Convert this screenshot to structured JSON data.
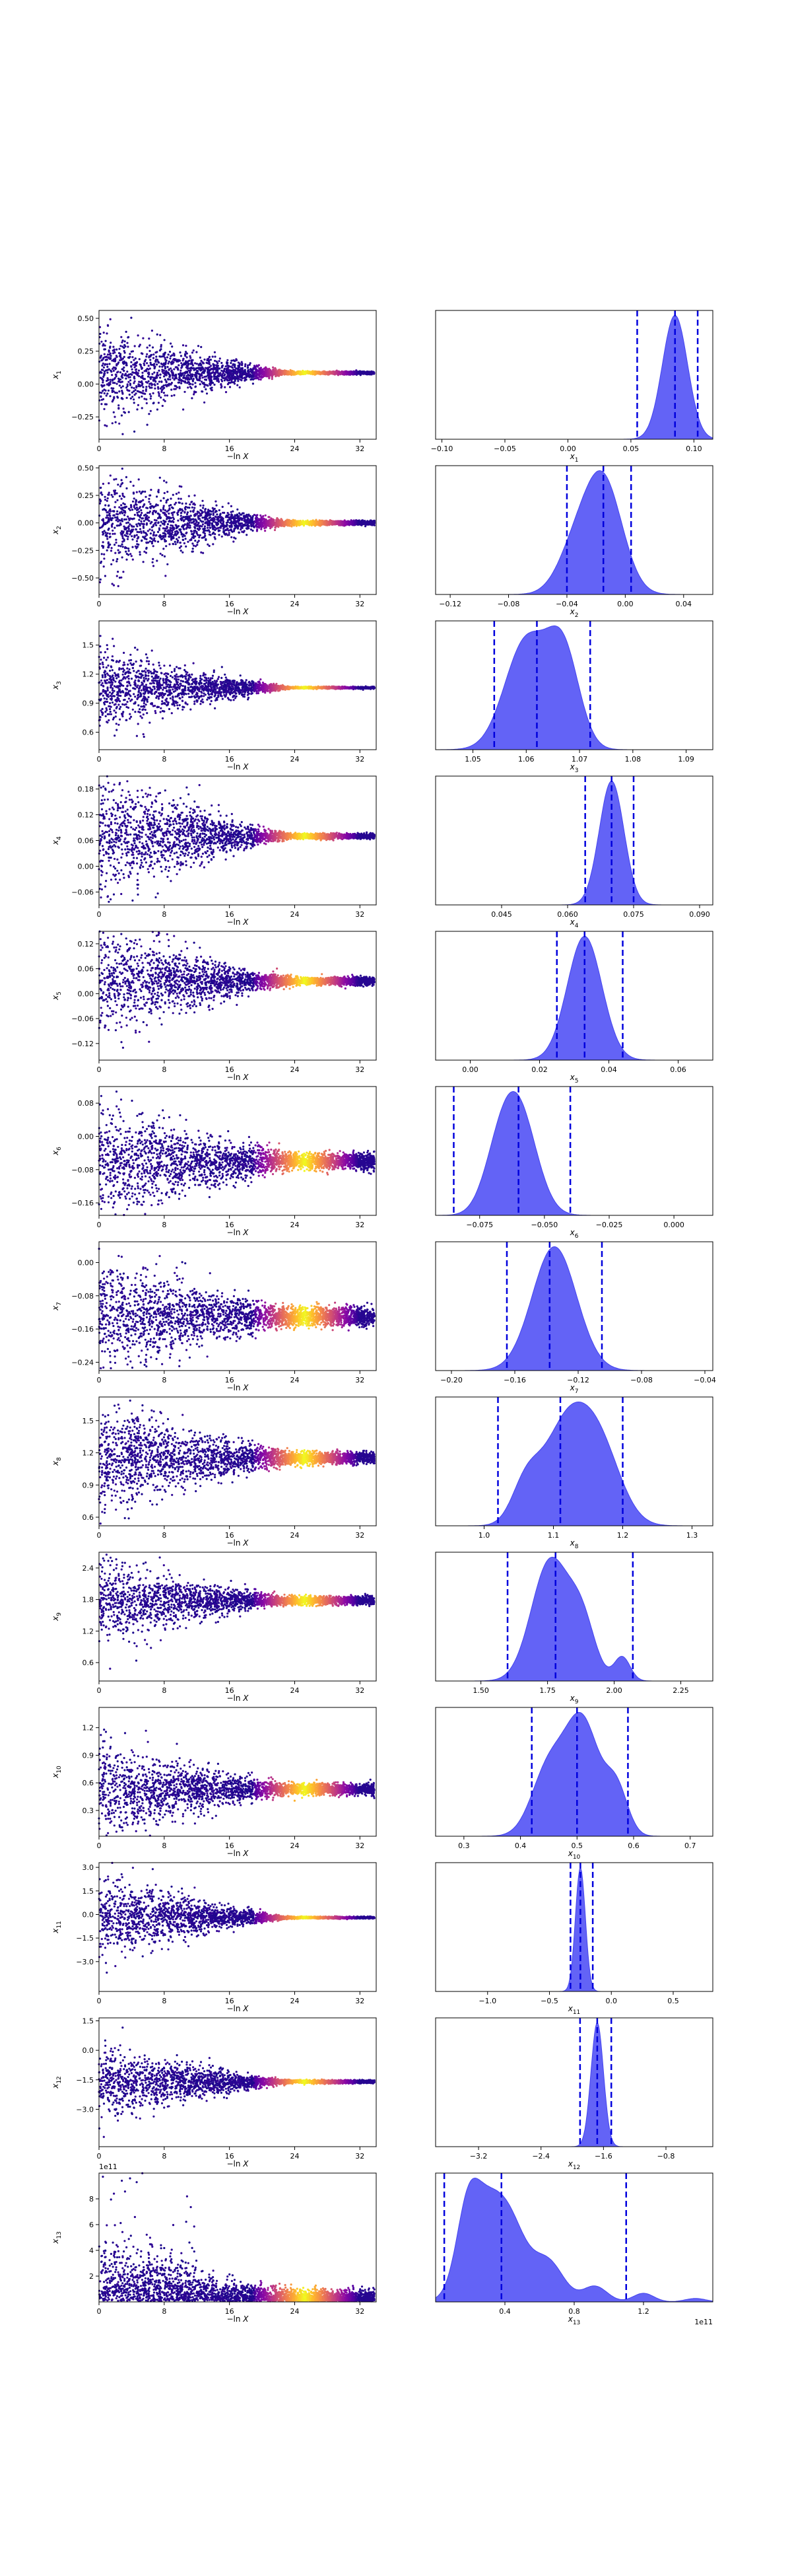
{
  "chart_data": [
    {
      "type": "scatter",
      "row": 1,
      "xlabel": "−ln X",
      "ylabel": "x_1",
      "xlim": [
        0,
        34
      ],
      "ylim": [
        -0.42,
        0.56
      ],
      "xticks": [
        0,
        8,
        16,
        24,
        32
      ],
      "yticks": [
        -0.25,
        0.0,
        0.25,
        0.5
      ],
      "yticklabels": [
        "−0.25",
        "0.00",
        "0.25",
        "0.50"
      ],
      "center": 0.085,
      "spread0": 0.17,
      "spread_end": 0.006,
      "colormap": "plasma"
    },
    {
      "type": "area",
      "row": 1,
      "xlabel": "x_1",
      "xlim": [
        -0.105,
        0.115
      ],
      "xticks": [
        -0.1,
        -0.05,
        0.0,
        0.05,
        0.1
      ],
      "xticklabels": [
        "−0.10",
        "−0.05",
        "0.00",
        "0.05",
        "0.10"
      ],
      "peaks": [
        [
          0.085,
          0.01,
          1.0
        ]
      ],
      "quantiles": [
        0.055,
        0.085,
        0.103
      ],
      "fill": "#5b5bf5",
      "line": "#0000dd"
    },
    {
      "type": "scatter",
      "row": 2,
      "xlabel": "−ln X",
      "ylabel": "x_2",
      "xlim": [
        0,
        34
      ],
      "ylim": [
        -0.65,
        0.52
      ],
      "xticks": [
        0,
        8,
        16,
        24,
        32
      ],
      "yticks": [
        -0.5,
        -0.25,
        0.0,
        0.25,
        0.5
      ],
      "yticklabels": [
        "−0.50",
        "−0.25",
        "0.00",
        "0.25",
        "0.50"
      ],
      "center": 0.0,
      "spread0": 0.22,
      "spread_end": 0.01,
      "colormap": "plasma"
    },
    {
      "type": "area",
      "row": 2,
      "xlabel": "x_2",
      "xlim": [
        -0.13,
        0.06
      ],
      "xticks": [
        -0.12,
        -0.08,
        -0.04,
        0.0,
        0.04
      ],
      "xticklabels": [
        "−0.12",
        "−0.08",
        "−0.04",
        "0.00",
        "0.04"
      ],
      "peaks": [
        [
          -0.015,
          0.013,
          1.0
        ],
        [
          -0.035,
          0.012,
          0.35
        ]
      ],
      "quantiles": [
        -0.04,
        -0.015,
        0.004
      ],
      "fill": "#5b5bf5",
      "line": "#0000dd"
    },
    {
      "type": "scatter",
      "row": 3,
      "xlabel": "−ln X",
      "ylabel": "x_3",
      "xlim": [
        0,
        34
      ],
      "ylim": [
        0.42,
        1.75
      ],
      "xticks": [
        0,
        8,
        16,
        24,
        32
      ],
      "yticks": [
        0.6,
        0.9,
        1.2,
        1.5
      ],
      "yticklabels": [
        "0.6",
        "0.9",
        "1.2",
        "1.5"
      ],
      "center": 1.06,
      "spread0": 0.2,
      "spread_end": 0.005,
      "colormap": "plasma"
    },
    {
      "type": "area",
      "row": 3,
      "xlabel": "x_3",
      "xlim": [
        1.043,
        1.095
      ],
      "xticks": [
        1.05,
        1.06,
        1.07,
        1.08,
        1.09
      ],
      "xticklabels": [
        "1.05",
        "1.06",
        "1.07",
        "1.08",
        "1.09"
      ],
      "peaks": [
        [
          1.06,
          0.004,
          1.0
        ],
        [
          1.067,
          0.003,
          0.85
        ]
      ],
      "quantiles": [
        1.054,
        1.062,
        1.072
      ],
      "fill": "#5b5bf5",
      "line": "#0000dd"
    },
    {
      "type": "scatter",
      "row": 4,
      "xlabel": "−ln X",
      "ylabel": "x_4",
      "xlim": [
        0,
        34
      ],
      "ylim": [
        -0.09,
        0.21
      ],
      "xticks": [
        0,
        8,
        16,
        24,
        32
      ],
      "yticks": [
        -0.06,
        0.0,
        0.06,
        0.12,
        0.18
      ],
      "yticklabels": [
        "−0.06",
        "0.00",
        "0.06",
        "0.12",
        "0.18"
      ],
      "center": 0.07,
      "spread0": 0.07,
      "spread_end": 0.003,
      "colormap": "plasma"
    },
    {
      "type": "area",
      "row": 4,
      "xlabel": "x_4",
      "xlim": [
        0.03,
        0.093
      ],
      "xticks": [
        0.045,
        0.06,
        0.075,
        0.09
      ],
      "xticklabels": [
        "0.045",
        "0.060",
        "0.075",
        "0.090"
      ],
      "peaks": [
        [
          0.07,
          0.0028,
          1.0
        ]
      ],
      "quantiles": [
        0.064,
        0.07,
        0.075
      ],
      "fill": "#5b5bf5",
      "line": "#0000dd"
    },
    {
      "type": "scatter",
      "row": 5,
      "xlabel": "−ln X",
      "ylabel": "x_5",
      "xlim": [
        0,
        34
      ],
      "ylim": [
        -0.16,
        0.15
      ],
      "xticks": [
        0,
        8,
        16,
        24,
        32
      ],
      "yticks": [
        -0.12,
        -0.06,
        0.0,
        0.06,
        0.12
      ],
      "yticklabels": [
        "−0.12",
        "−0.06",
        "0.00",
        "0.06",
        "0.12"
      ],
      "center": 0.03,
      "spread0": 0.06,
      "spread_end": 0.005,
      "colormap": "plasma"
    },
    {
      "type": "area",
      "row": 5,
      "xlabel": "x_5",
      "xlim": [
        -0.01,
        0.07
      ],
      "xticks": [
        0.0,
        0.02,
        0.04,
        0.06
      ],
      "xticklabels": [
        "0.00",
        "0.02",
        "0.04",
        "0.06"
      ],
      "peaks": [
        [
          0.033,
          0.005,
          1.0
        ]
      ],
      "quantiles": [
        0.025,
        0.033,
        0.044
      ],
      "fill": "#5b5bf5",
      "line": "#0000dd"
    },
    {
      "type": "scatter",
      "row": 6,
      "xlabel": "−ln X",
      "ylabel": "x_6",
      "xlim": [
        0,
        34
      ],
      "ylim": [
        -0.19,
        0.12
      ],
      "xticks": [
        0,
        8,
        16,
        24,
        32
      ],
      "yticks": [
        -0.16,
        -0.08,
        0.0,
        0.08
      ],
      "yticklabels": [
        "−0.16",
        "−0.08",
        "0.00",
        "0.08"
      ],
      "center": -0.06,
      "spread0": 0.06,
      "spread_end": 0.01,
      "colormap": "plasma"
    },
    {
      "type": "area",
      "row": 6,
      "xlabel": "x_6",
      "xlim": [
        -0.092,
        0.015
      ],
      "xticks": [
        -0.075,
        -0.05,
        -0.025,
        0.0
      ],
      "xticklabels": [
        "−0.075",
        "−0.050",
        "−0.025",
        "0.000"
      ],
      "peaks": [
        [
          -0.06,
          0.007,
          1.0
        ],
        [
          -0.068,
          0.006,
          0.4
        ]
      ],
      "quantiles": [
        -0.085,
        -0.06,
        -0.04
      ],
      "fill": "#5b5bf5",
      "line": "#0000dd"
    },
    {
      "type": "scatter",
      "row": 7,
      "xlabel": "−ln X",
      "ylabel": "x_7",
      "xlim": [
        0,
        34
      ],
      "ylim": [
        -0.26,
        0.05
      ],
      "xticks": [
        0,
        8,
        16,
        24,
        32
      ],
      "yticks": [
        -0.24,
        -0.16,
        -0.08,
        0.0
      ],
      "yticklabels": [
        "−0.24",
        "−0.16",
        "−0.08",
        "0.00"
      ],
      "center": -0.13,
      "spread0": 0.06,
      "spread_end": 0.012,
      "colormap": "plasma"
    },
    {
      "type": "area",
      "row": 7,
      "xlabel": "x_7",
      "xlim": [
        -0.21,
        -0.035
      ],
      "xticks": [
        -0.2,
        -0.16,
        -0.12,
        -0.08,
        -0.04
      ],
      "xticklabels": [
        "−0.20",
        "−0.16",
        "−0.12",
        "−0.08",
        "−0.04"
      ],
      "peaks": [
        [
          -0.135,
          0.014,
          1.0
        ]
      ],
      "quantiles": [
        -0.165,
        -0.138,
        -0.105
      ],
      "fill": "#5b5bf5",
      "line": "#0000dd"
    },
    {
      "type": "scatter",
      "row": 8,
      "xlabel": "−ln X",
      "ylabel": "x_8",
      "xlim": [
        0,
        34
      ],
      "ylim": [
        0.52,
        1.72
      ],
      "xticks": [
        0,
        8,
        16,
        24,
        32
      ],
      "yticks": [
        0.6,
        0.9,
        1.2,
        1.5
      ],
      "yticklabels": [
        "0.6",
        "0.9",
        "1.2",
        "1.5"
      ],
      "center": 1.15,
      "spread0": 0.22,
      "spread_end": 0.03,
      "colormap": "plasma"
    },
    {
      "type": "area",
      "row": 8,
      "xlabel": "x_8",
      "xlim": [
        0.93,
        1.33
      ],
      "xticks": [
        1.0,
        1.1,
        1.2,
        1.3
      ],
      "xticklabels": [
        "1.0",
        "1.1",
        "1.2",
        "1.3"
      ],
      "peaks": [
        [
          1.12,
          0.035,
          1.0
        ],
        [
          1.17,
          0.03,
          0.6
        ],
        [
          1.06,
          0.02,
          0.35
        ]
      ],
      "quantiles": [
        1.02,
        1.11,
        1.2
      ],
      "fill": "#5b5bf5",
      "line": "#0000dd"
    },
    {
      "type": "scatter",
      "row": 9,
      "xlabel": "−ln X",
      "ylabel": "x_9",
      "xlim": [
        0,
        34
      ],
      "ylim": [
        0.25,
        2.7
      ],
      "xticks": [
        0,
        8,
        16,
        24,
        32
      ],
      "yticks": [
        0.6,
        1.2,
        1.8,
        2.4
      ],
      "yticklabels": [
        "0.6",
        "1.2",
        "1.8",
        "2.4"
      ],
      "center": 1.78,
      "spread0": 0.35,
      "spread_end": 0.04,
      "colormap": "plasma"
    },
    {
      "type": "area",
      "row": 9,
      "xlabel": "x_9",
      "xlim": [
        1.33,
        2.37
      ],
      "xticks": [
        1.5,
        1.75,
        2.0,
        2.25
      ],
      "xticklabels": [
        "1.50",
        "1.75",
        "2.00",
        "2.25"
      ],
      "peaks": [
        [
          1.76,
          0.07,
          1.0
        ],
        [
          1.88,
          0.05,
          0.45
        ],
        [
          2.03,
          0.03,
          0.2
        ]
      ],
      "quantiles": [
        1.6,
        1.78,
        2.07
      ],
      "fill": "#5b5bf5",
      "line": "#0000dd"
    },
    {
      "type": "scatter",
      "row": 10,
      "xlabel": "−ln X",
      "ylabel": "x_10",
      "xlim": [
        0,
        34
      ],
      "ylim": [
        0.02,
        1.42
      ],
      "xticks": [
        0,
        8,
        16,
        24,
        32
      ],
      "yticks": [
        0.3,
        0.6,
        0.9,
        1.2
      ],
      "yticklabels": [
        "0.3",
        "0.6",
        "0.9",
        "1.2"
      ],
      "center": 0.53,
      "spread0": 0.22,
      "spread_end": 0.03,
      "colormap": "plasma"
    },
    {
      "type": "area",
      "row": 10,
      "xlabel": "x_10",
      "xlim": [
        0.25,
        0.74
      ],
      "xticks": [
        0.3,
        0.4,
        0.5,
        0.6,
        0.7
      ],
      "xticklabels": [
        "0.3",
        "0.4",
        "0.5",
        "0.6",
        "0.7"
      ],
      "peaks": [
        [
          0.51,
          0.03,
          1.0
        ],
        [
          0.45,
          0.03,
          0.6
        ],
        [
          0.57,
          0.02,
          0.4
        ]
      ],
      "quantiles": [
        0.42,
        0.5,
        0.59
      ],
      "fill": "#5b5bf5",
      "line": "#0000dd"
    },
    {
      "type": "scatter",
      "row": 11,
      "xlabel": "−ln X",
      "ylabel": "x_11",
      "xlim": [
        0,
        34
      ],
      "ylim": [
        -4.9,
        3.3
      ],
      "xticks": [
        0,
        8,
        16,
        24,
        32
      ],
      "yticks": [
        -3.0,
        -1.5,
        0.0,
        1.5,
        3.0
      ],
      "yticklabels": [
        "−3.0",
        "−1.5",
        "0.0",
        "1.5",
        "3.0"
      ],
      "center": -0.2,
      "spread0": 1.3,
      "spread_end": 0.03,
      "colormap": "plasma"
    },
    {
      "type": "area",
      "row": 11,
      "xlabel": "x_11",
      "xlim": [
        -1.42,
        0.82
      ],
      "xticks": [
        -1.0,
        -0.5,
        0.0,
        0.5
      ],
      "xticklabels": [
        "−1.0",
        "−0.5",
        "0.0",
        "0.5"
      ],
      "peaks": [
        [
          -0.25,
          0.04,
          1.0
        ]
      ],
      "quantiles": [
        -0.33,
        -0.25,
        -0.15
      ],
      "fill": "#5b5bf5",
      "line": "#0000dd"
    },
    {
      "type": "scatter",
      "row": 12,
      "xlabel": "−ln X",
      "ylabel": "x_12",
      "xlim": [
        0,
        34
      ],
      "ylim": [
        -4.9,
        1.65
      ],
      "xticks": [
        0,
        8,
        16,
        24,
        32
      ],
      "yticks": [
        -3.0,
        -1.5,
        0.0,
        1.5
      ],
      "yticklabels": [
        "−3.0",
        "−1.5",
        "0.0",
        "1.5"
      ],
      "center": -1.6,
      "spread0": 0.9,
      "spread_end": 0.04,
      "colormap": "plasma"
    },
    {
      "type": "area",
      "row": 12,
      "xlabel": "x_12",
      "xlim": [
        -3.75,
        -0.2
      ],
      "xticks": [
        -3.2,
        -2.4,
        -1.6,
        -0.8
      ],
      "xticklabels": [
        "−3.2",
        "−2.4",
        "−1.6",
        "−0.8"
      ],
      "peaks": [
        [
          -1.68,
          0.08,
          1.0
        ]
      ],
      "quantiles": [
        -1.9,
        -1.68,
        -1.5
      ],
      "fill": "#5b5bf5",
      "line": "#0000dd"
    },
    {
      "type": "scatter",
      "row": 13,
      "xlabel": "−ln X",
      "ylabel": "x_13",
      "exponent": "1e11",
      "xlim": [
        0,
        34
      ],
      "ylim": [
        0,
        10.0
      ],
      "xticks": [
        0,
        8,
        16,
        24,
        32
      ],
      "yticks": [
        2,
        4,
        6,
        8
      ],
      "yticklabels": [
        "2",
        "4",
        "6",
        "8"
      ],
      "center": 0.5,
      "spread0": 1.4,
      "spread_end": 0.4,
      "colormap": "plasma",
      "skew": true
    },
    {
      "type": "area",
      "row": 13,
      "xlabel": "x_13",
      "exponent": "1e11",
      "xlim": [
        0,
        1.6
      ],
      "xticks": [
        0.4,
        0.8,
        1.2
      ],
      "xticklabels": [
        "0.4",
        "0.8",
        "1.2"
      ],
      "peaks": [
        [
          0.25,
          0.1,
          0.95
        ],
        [
          0.42,
          0.1,
          0.9
        ],
        [
          0.18,
          0.06,
          0.5
        ],
        [
          0.65,
          0.09,
          0.45
        ],
        [
          0.92,
          0.07,
          0.18
        ],
        [
          1.2,
          0.06,
          0.1
        ],
        [
          1.5,
          0.06,
          0.04
        ]
      ],
      "quantiles": [
        0.05,
        0.38,
        1.1
      ],
      "fill": "#5b5bf5",
      "line": "#0000dd"
    }
  ]
}
